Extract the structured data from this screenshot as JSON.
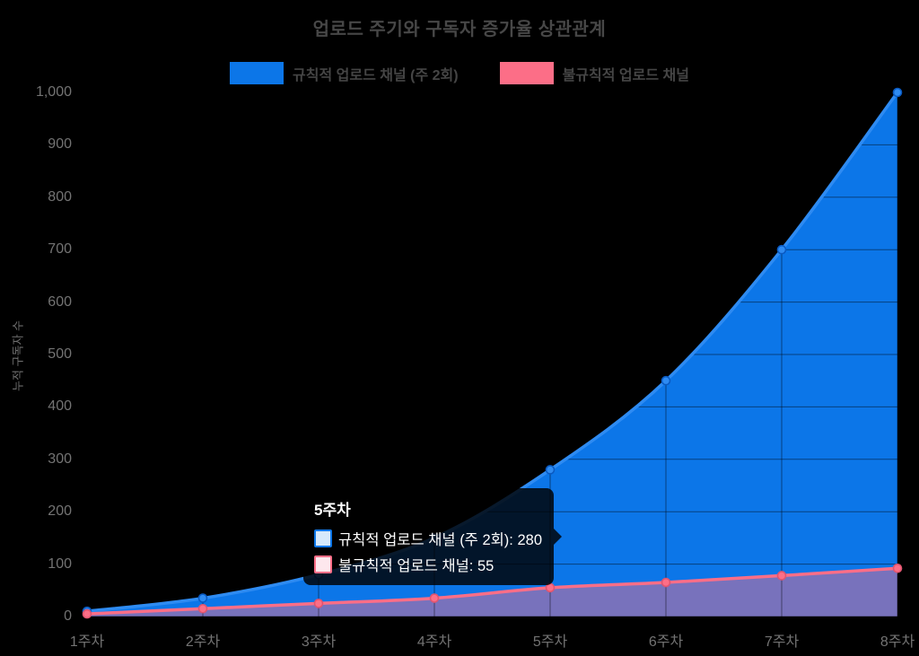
{
  "title": "업로드 주기와 구독자 증가율 상관관계",
  "legend": [
    {
      "label": "규칙적 업로드 채널 (주 2회)",
      "swatch_style": "background:#0C76E8;"
    },
    {
      "label": "불규칙적 업로드 채널",
      "swatch_style": "background:#FC6E87;"
    }
  ],
  "chart_data": {
    "type": "area",
    "title": "업로드 주기와 구독자 증가율 상관관계",
    "ylabel": "누적 구독자 수",
    "xlabel": "",
    "categories": [
      "1주차",
      "2주차",
      "3주차",
      "4주차",
      "5주차",
      "6주차",
      "7주차",
      "8주차"
    ],
    "series": [
      {
        "key": "regular",
        "name": "규칙적 업로드 채널 (주 2회)",
        "values": [
          10,
          35,
          80,
          150,
          280,
          450,
          700,
          1000
        ],
        "line_color": "#2E8BF2",
        "fill_color": "#0C76E8",
        "point_fill": "#2E8BF2",
        "point_border": "#0A5AC2"
      },
      {
        "key": "irregular",
        "name": "불규칙적 업로드 채널",
        "values": [
          5,
          15,
          25,
          35,
          55,
          65,
          78,
          92
        ],
        "line_color": "#FC6E87",
        "fill_color": "rgba(252,110,135,0.45)",
        "point_fill": "#FC6E87",
        "point_border": "#E0556F"
      }
    ],
    "ylim": [
      0,
      1000
    ],
    "ytick_step": 100,
    "yticks": [
      "0",
      "100",
      "200",
      "300",
      "400",
      "500",
      "600",
      "700",
      "800",
      "900",
      "1,000"
    ],
    "grid": true,
    "gridline_color": "rgba(0,0,0,0.45)",
    "legend_position": "top"
  },
  "tooltip": {
    "title": "5주차",
    "rows": [
      {
        "text": "규칙적 업로드 채널 (주 2회): 280",
        "swatch_style": "background:#D6E9FB;border-color:#0C76E8;"
      },
      {
        "text": "불규칙적 업로드 채널: 55",
        "swatch_style": "background:#FDE7ED;border-color:#FC6E87;"
      }
    ]
  },
  "colors": {
    "background": "#000000",
    "title_text": "#474747",
    "tick_text": "#737373",
    "series_regular": "#0C76E8",
    "series_irregular": "#FC6E87",
    "tooltip_bg": "rgba(0,0,0,0.82)"
  }
}
